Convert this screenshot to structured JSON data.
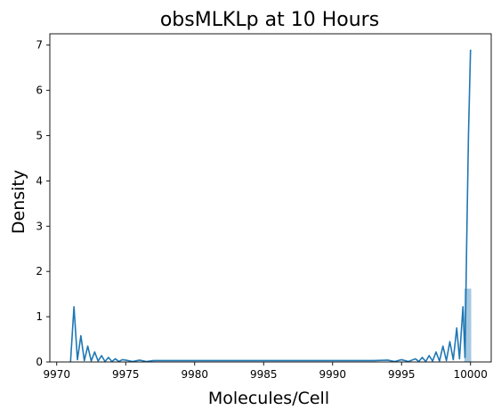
{
  "chart_data": {
    "type": "line",
    "title": "obsMLKLp at 10 Hours",
    "xlabel": "Molecules/Cell",
    "ylabel": "Density",
    "xlim": [
      9969.5,
      10001.5
    ],
    "ylim": [
      0,
      7.25
    ],
    "grid": false,
    "legend": "none",
    "x_ticks": [
      9970,
      9975,
      9980,
      9985,
      9990,
      9995,
      10000
    ],
    "x_tick_labels": [
      "9970",
      "9975",
      "9980",
      "9985",
      "9990",
      "9995",
      "10000"
    ],
    "y_ticks": [
      0,
      1,
      2,
      3,
      4,
      5,
      6,
      7
    ],
    "y_tick_labels": [
      "0",
      "1",
      "2",
      "3",
      "4",
      "5",
      "6",
      "7"
    ],
    "series": [
      {
        "kind": "kde-line",
        "color": "#1f77b4",
        "x": [
          9971.0,
          9971.25,
          9971.5,
          9971.75,
          9972.0,
          9972.25,
          9972.5,
          9972.75,
          9973.0,
          9973.25,
          9973.5,
          9973.75,
          9974.0,
          9974.25,
          9974.5,
          9974.75,
          9975.0,
          9975.5,
          9976.0,
          9976.5,
          9977.0,
          9978.0,
          9979.0,
          9980.0,
          9982.0,
          9984.0,
          9986.0,
          9988.0,
          9990.0,
          9992.0,
          9993.0,
          9994.0,
          9994.5,
          9995.0,
          9995.5,
          9996.0,
          9996.25,
          9996.5,
          9996.75,
          9997.0,
          9997.25,
          9997.5,
          9997.75,
          9998.0,
          9998.25,
          9998.5,
          9998.75,
          9999.0,
          9999.2,
          9999.45,
          9999.6,
          9999.72,
          9999.85,
          10000.0
        ],
        "y": [
          0.0,
          1.22,
          0.05,
          0.58,
          0.03,
          0.35,
          0.02,
          0.22,
          0.02,
          0.14,
          0.01,
          0.1,
          0.01,
          0.07,
          0.01,
          0.05,
          0.04,
          0.01,
          0.04,
          0.01,
          0.03,
          0.03,
          0.03,
          0.03,
          0.03,
          0.03,
          0.03,
          0.03,
          0.03,
          0.03,
          0.03,
          0.04,
          0.01,
          0.05,
          0.01,
          0.07,
          0.01,
          0.1,
          0.01,
          0.14,
          0.02,
          0.22,
          0.02,
          0.35,
          0.03,
          0.45,
          0.05,
          0.75,
          0.07,
          1.22,
          0.1,
          2.6,
          5.0,
          6.9
        ]
      },
      {
        "kind": "histogram-bar",
        "color": "#1f77b4",
        "bins": [
          [
            9999.55,
            10000.05
          ]
        ],
        "values": [
          1.62
        ]
      }
    ]
  }
}
